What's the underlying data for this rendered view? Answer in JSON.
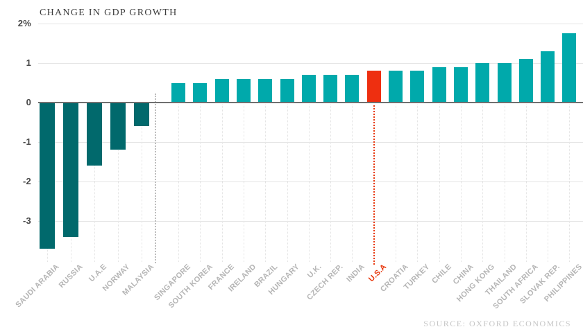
{
  "chart_data": {
    "type": "bar",
    "title": "CHANGE IN GDP GROWTH",
    "source": "SOURCE: OXFORD ECONOMICS",
    "y_unit": "%",
    "ylim": [
      -3.7,
      2
    ],
    "grid": "horizontal",
    "legend": "none",
    "highlight_category": "U.S.A",
    "y_ticks": [
      {
        "label": "2%",
        "value": 2
      },
      {
        "label": "1",
        "value": 1
      },
      {
        "label": "0",
        "value": 0
      },
      {
        "label": "-1",
        "value": -1
      },
      {
        "label": "-2",
        "value": -2
      },
      {
        "label": "-3",
        "value": -3
      }
    ],
    "bars": [
      {
        "label": "SAUDI ARABIA",
        "value": -3.7
      },
      {
        "label": "RUSSIA",
        "value": -3.4
      },
      {
        "label": "U.A.E",
        "value": -1.6
      },
      {
        "label": "NORWAY",
        "value": -1.2
      },
      {
        "label": "MALAYSIA",
        "value": -0.6
      },
      {
        "label": "SINGAPORE",
        "value": 0.5
      },
      {
        "label": "SOUTH KOREA",
        "value": 0.5
      },
      {
        "label": "FRANCE",
        "value": 0.6
      },
      {
        "label": "IRELAND",
        "value": 0.6
      },
      {
        "label": "BRAZIL",
        "value": 0.6
      },
      {
        "label": "HUNGARY",
        "value": 0.6
      },
      {
        "label": "U.K.",
        "value": 0.7
      },
      {
        "label": "CZECH REP.",
        "value": 0.7
      },
      {
        "label": "INDIA",
        "value": 0.7
      },
      {
        "label": "U.S.A",
        "value": 0.8,
        "highlight": true
      },
      {
        "label": "CROATIA",
        "value": 0.8
      },
      {
        "label": "TURKEY",
        "value": 0.8
      },
      {
        "label": "CHILE",
        "value": 0.9
      },
      {
        "label": "CHINA",
        "value": 0.9
      },
      {
        "label": "HONG KONG",
        "value": 1.0
      },
      {
        "label": "THAILAND",
        "value": 1.0
      },
      {
        "label": "SOUTH AFRICA",
        "value": 1.1
      },
      {
        "label": "SLOVAK REP.",
        "value": 1.3
      },
      {
        "label": "PHILIPPINES",
        "value": 1.75
      }
    ],
    "colors": {
      "negative_bar": "#01696c",
      "positive_bar": "#00a9ab",
      "highlight_bar": "#ee2f10",
      "highlight_leader": "#e8380d",
      "axis_line": "#6f6f6f",
      "gridline": "#e4e4e4",
      "divider_dots": "#bdbdbd",
      "tick_label": "#474747",
      "category_label": "#b5b5b5",
      "title_text": "#3d3d3d",
      "source_text": "#c6c6c6",
      "background": "#ffffff"
    }
  }
}
